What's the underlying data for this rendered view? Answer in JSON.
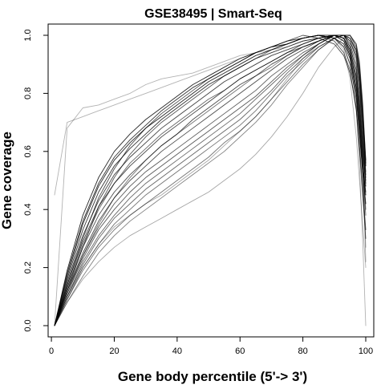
{
  "chart_data": {
    "type": "line",
    "title": "GSE38495 | Smart-Seq",
    "xlabel": "Gene body percentile (5'-> 3')",
    "ylabel": "Gene coverage",
    "xlim": [
      1,
      100
    ],
    "ylim": [
      0,
      1
    ],
    "x_ticks": [
      0,
      20,
      40,
      60,
      80,
      100
    ],
    "x_tick_labels": [
      "0",
      "20",
      "40",
      "60",
      "80",
      "100"
    ],
    "y_ticks": [
      0.0,
      0.2,
      0.4,
      0.6,
      0.8,
      1.0
    ],
    "y_tick_labels": [
      "0.0",
      "0.2",
      "0.4",
      "0.6",
      "0.8",
      "1.0"
    ],
    "grid": false,
    "legend": "none",
    "line_color": "#000000",
    "x": [
      1,
      5,
      10,
      15,
      20,
      25,
      30,
      35,
      40,
      45,
      50,
      55,
      60,
      65,
      70,
      75,
      80,
      85,
      90,
      93,
      95,
      97,
      98,
      99,
      100
    ],
    "series": [
      {
        "values": [
          0.0,
          0.19,
          0.38,
          0.51,
          0.6,
          0.66,
          0.71,
          0.75,
          0.79,
          0.83,
          0.86,
          0.89,
          0.92,
          0.94,
          0.96,
          0.98,
          0.99,
          1.0,
          0.99,
          0.97,
          0.92,
          0.8,
          0.68,
          0.55,
          0.45
        ],
        "alpha": 0.85
      },
      {
        "values": [
          0.0,
          0.17,
          0.35,
          0.48,
          0.57,
          0.63,
          0.68,
          0.72,
          0.76,
          0.8,
          0.84,
          0.87,
          0.9,
          0.93,
          0.95,
          0.97,
          0.99,
          1.0,
          0.99,
          0.96,
          0.9,
          0.78,
          0.66,
          0.53,
          0.42
        ],
        "alpha": 0.85
      },
      {
        "values": [
          0.0,
          0.18,
          0.36,
          0.49,
          0.58,
          0.64,
          0.69,
          0.74,
          0.78,
          0.82,
          0.85,
          0.88,
          0.91,
          0.94,
          0.96,
          0.97,
          0.99,
          1.0,
          1.0,
          0.98,
          0.93,
          0.82,
          0.7,
          0.56,
          0.46
        ],
        "alpha": 0.8
      },
      {
        "values": [
          0.0,
          0.16,
          0.33,
          0.46,
          0.55,
          0.61,
          0.66,
          0.71,
          0.75,
          0.79,
          0.83,
          0.86,
          0.89,
          0.92,
          0.94,
          0.96,
          0.98,
          0.99,
          1.0,
          0.99,
          0.94,
          0.84,
          0.73,
          0.6,
          0.48
        ],
        "alpha": 0.8
      },
      {
        "values": [
          0.0,
          0.15,
          0.31,
          0.43,
          0.52,
          0.58,
          0.63,
          0.68,
          0.72,
          0.76,
          0.8,
          0.84,
          0.87,
          0.9,
          0.93,
          0.95,
          0.97,
          0.99,
          1.0,
          0.99,
          0.95,
          0.86,
          0.75,
          0.62,
          0.5
        ],
        "alpha": 0.75
      },
      {
        "values": [
          0.0,
          0.14,
          0.29,
          0.41,
          0.49,
          0.55,
          0.6,
          0.65,
          0.69,
          0.73,
          0.77,
          0.81,
          0.85,
          0.88,
          0.91,
          0.94,
          0.96,
          0.98,
          1.0,
          1.0,
          0.96,
          0.88,
          0.77,
          0.63,
          0.49
        ],
        "alpha": 0.75
      },
      {
        "values": [
          0.0,
          0.13,
          0.27,
          0.38,
          0.46,
          0.52,
          0.57,
          0.62,
          0.66,
          0.71,
          0.75,
          0.79,
          0.83,
          0.86,
          0.9,
          0.93,
          0.96,
          0.98,
          1.0,
          1.0,
          0.97,
          0.9,
          0.8,
          0.66,
          0.51
        ],
        "alpha": 0.7
      },
      {
        "values": [
          0.0,
          0.12,
          0.25,
          0.36,
          0.44,
          0.5,
          0.55,
          0.6,
          0.64,
          0.68,
          0.72,
          0.76,
          0.8,
          0.84,
          0.88,
          0.92,
          0.95,
          0.98,
          1.0,
          1.0,
          0.98,
          0.92,
          0.83,
          0.68,
          0.52
        ],
        "alpha": 0.7
      },
      {
        "values": [
          0.0,
          0.12,
          0.24,
          0.34,
          0.42,
          0.48,
          0.53,
          0.57,
          0.61,
          0.65,
          0.69,
          0.73,
          0.77,
          0.81,
          0.86,
          0.9,
          0.94,
          0.97,
          1.0,
          1.0,
          0.98,
          0.93,
          0.84,
          0.7,
          0.53
        ],
        "alpha": 0.65
      },
      {
        "values": [
          0.0,
          0.11,
          0.23,
          0.33,
          0.4,
          0.46,
          0.51,
          0.55,
          0.59,
          0.63,
          0.67,
          0.71,
          0.75,
          0.79,
          0.84,
          0.89,
          0.93,
          0.97,
          1.0,
          1.0,
          0.99,
          0.94,
          0.86,
          0.72,
          0.55
        ],
        "alpha": 0.65
      },
      {
        "values": [
          0.0,
          0.1,
          0.22,
          0.31,
          0.38,
          0.44,
          0.49,
          0.53,
          0.57,
          0.61,
          0.65,
          0.69,
          0.73,
          0.78,
          0.83,
          0.88,
          0.93,
          0.97,
          1.0,
          1.0,
          0.99,
          0.95,
          0.87,
          0.73,
          0.55
        ],
        "alpha": 0.6
      },
      {
        "values": [
          0.0,
          0.1,
          0.21,
          0.3,
          0.37,
          0.42,
          0.47,
          0.51,
          0.55,
          0.59,
          0.63,
          0.67,
          0.71,
          0.76,
          0.81,
          0.87,
          0.92,
          0.96,
          0.99,
          1.0,
          0.99,
          0.95,
          0.88,
          0.74,
          0.56
        ],
        "alpha": 0.6
      },
      {
        "values": [
          0.0,
          0.09,
          0.2,
          0.28,
          0.35,
          0.4,
          0.45,
          0.49,
          0.53,
          0.57,
          0.61,
          0.65,
          0.69,
          0.74,
          0.8,
          0.86,
          0.91,
          0.96,
          0.99,
          1.0,
          1.0,
          0.96,
          0.89,
          0.75,
          0.57
        ],
        "alpha": 0.55
      },
      {
        "values": [
          0.0,
          0.09,
          0.19,
          0.27,
          0.33,
          0.38,
          0.42,
          0.46,
          0.5,
          0.54,
          0.58,
          0.63,
          0.67,
          0.72,
          0.78,
          0.84,
          0.9,
          0.95,
          0.99,
          1.0,
          1.0,
          0.97,
          0.9,
          0.76,
          0.56
        ],
        "alpha": 0.55
      },
      {
        "values": [
          0.0,
          0.08,
          0.17,
          0.25,
          0.31,
          0.36,
          0.4,
          0.44,
          0.48,
          0.52,
          0.56,
          0.6,
          0.65,
          0.7,
          0.76,
          0.83,
          0.89,
          0.95,
          0.99,
          1.0,
          1.0,
          0.97,
          0.91,
          0.77,
          0.57
        ],
        "alpha": 0.5
      },
      {
        "values": [
          0.0,
          0.14,
          0.3,
          0.44,
          0.54,
          0.62,
          0.68,
          0.73,
          0.77,
          0.81,
          0.85,
          0.88,
          0.91,
          0.94,
          0.96,
          0.98,
          1.0,
          0.99,
          0.97,
          0.93,
          0.87,
          0.75,
          0.62,
          0.48,
          0.33
        ],
        "alpha": 0.7
      },
      {
        "values": [
          0.0,
          0.12,
          0.27,
          0.41,
          0.51,
          0.59,
          0.65,
          0.7,
          0.74,
          0.78,
          0.82,
          0.86,
          0.89,
          0.92,
          0.95,
          0.97,
          0.99,
          1.0,
          0.98,
          0.94,
          0.88,
          0.74,
          0.6,
          0.45,
          0.3
        ],
        "alpha": 0.65
      },
      {
        "values": [
          0.0,
          0.08,
          0.16,
          0.22,
          0.27,
          0.31,
          0.34,
          0.37,
          0.4,
          0.43,
          0.46,
          0.5,
          0.54,
          0.59,
          0.65,
          0.72,
          0.8,
          0.89,
          0.96,
          0.99,
          1.0,
          0.96,
          0.85,
          0.6,
          0.22
        ],
        "alpha": 0.35
      },
      {
        "values": [
          0.0,
          0.1,
          0.2,
          0.28,
          0.34,
          0.38,
          0.42,
          0.45,
          0.49,
          0.53,
          0.57,
          0.62,
          0.67,
          0.72,
          0.78,
          0.85,
          0.92,
          0.97,
          1.0,
          0.99,
          0.96,
          0.88,
          0.75,
          0.55,
          0.27
        ],
        "alpha": 0.35
      },
      {
        "values": [
          0.45,
          0.7,
          0.72,
          0.74,
          0.76,
          0.78,
          0.8,
          0.82,
          0.84,
          0.86,
          0.88,
          0.9,
          0.92,
          0.94,
          0.95,
          0.96,
          0.98,
          0.99,
          1.0,
          0.99,
          0.93,
          0.75,
          0.55,
          0.3,
          0.0
        ],
        "alpha": 0.3
      },
      {
        "values": [
          0.0,
          0.68,
          0.75,
          0.76,
          0.78,
          0.8,
          0.83,
          0.85,
          0.86,
          0.87,
          0.89,
          0.91,
          0.93,
          0.94,
          0.96,
          0.97,
          0.99,
          1.0,
          0.99,
          0.95,
          0.85,
          0.65,
          0.5,
          0.35,
          0.2
        ],
        "alpha": 0.3
      },
      {
        "values": [
          0.0,
          0.11,
          0.24,
          0.35,
          0.44,
          0.51,
          0.57,
          0.62,
          0.66,
          0.7,
          0.74,
          0.78,
          0.82,
          0.86,
          0.89,
          0.93,
          0.96,
          0.98,
          1.0,
          0.99,
          0.95,
          0.85,
          0.72,
          0.58,
          0.4
        ],
        "alpha": 0.55
      },
      {
        "values": [
          0.0,
          0.13,
          0.28,
          0.4,
          0.49,
          0.56,
          0.61,
          0.66,
          0.7,
          0.74,
          0.78,
          0.81,
          0.85,
          0.88,
          0.91,
          0.94,
          0.97,
          0.99,
          1.0,
          0.98,
          0.93,
          0.81,
          0.68,
          0.54,
          0.38
        ],
        "alpha": 0.6
      }
    ]
  }
}
